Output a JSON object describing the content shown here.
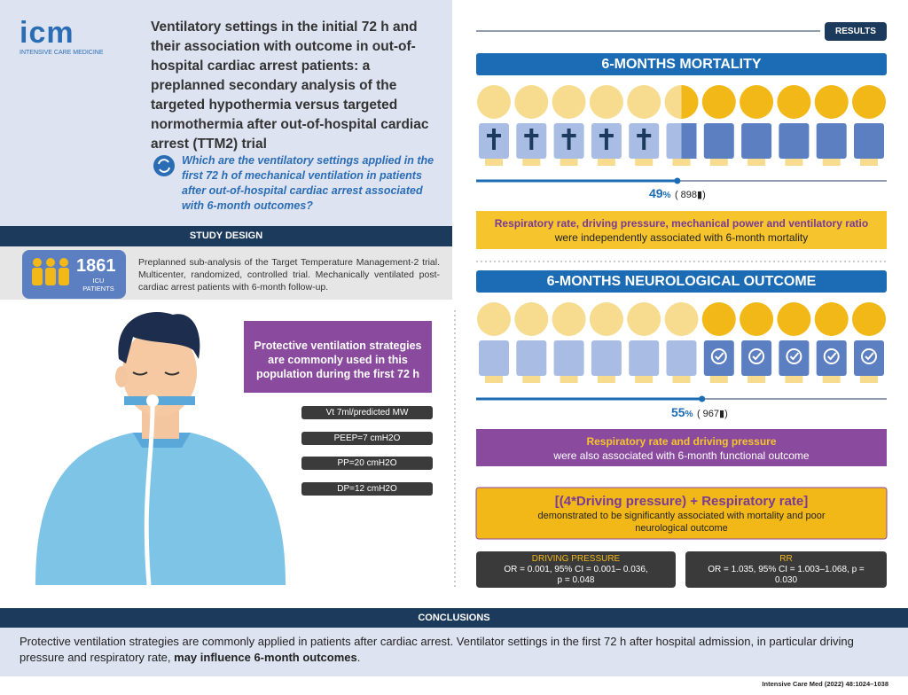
{
  "header": {
    "logo": "icm",
    "logo_sub": "INTENSIVE CARE MEDICINE",
    "title": "Ventilatory settings in the initial 72 h and their association with outcome in out-of-hospital cardiac arrest patients: a preplanned secondary analysis of the targeted hypothermia versus targeted normothermia after out-of-hospital cardiac arrest (TTM2) trial",
    "question": "Which are the ventilatory settings applied in the first 72 h of mechanical ventilation in patients after out-of-hospital cardiac arrest associated with 6-month outcomes?"
  },
  "study_design": {
    "heading": "STUDY DESIGN",
    "count": "1861",
    "count_label": "ICU PATIENTS",
    "description": "Preplanned sub-analysis of the Target Temperature Management-2 trial. Multicenter, randomized, controlled trial. Mechanically ventilated post-cardiac arrest patients with 6-month follow-up."
  },
  "protective": {
    "text": "Protective ventilation strategies are commonly used in this population during the first 72 h",
    "settings": [
      "Vt 7ml/predicted MW",
      "PEEP=7 cmH2O",
      "PP=20 cmH2O",
      "DP=12 cmH2O"
    ]
  },
  "results": {
    "badge": "RESULTS",
    "mortality": {
      "heading": "6-MONTHS MORTALITY",
      "percent": 49,
      "percent_unit": "%",
      "count": "( 898",
      "count_close": ")",
      "finding_bold": "Respiratory rate, driving pressure, mechanical power and ventilatory ratio",
      "finding": "were independently associated with 6-month mortality"
    },
    "neuro": {
      "heading": "6-MONTHS NEUROLOGICAL OUTCOME",
      "percent": 55,
      "percent_unit": "%",
      "count": "( 967",
      "count_close": ")",
      "finding_bold": "Respiratory rate and driving pressure",
      "finding": "were also associated with 6-month functional outcome"
    },
    "formula": {
      "title": "[(4*Driving pressure) + Respiratory rate]",
      "text": "demonstrated to be significantly associated with mortality and poor neurological outcome"
    },
    "stats": [
      {
        "label": "DRIVING PRESSURE",
        "text": "OR = 0.001, 95% CI = 0.001– 0.036, p = 0.048"
      },
      {
        "label": "RR",
        "text": "OR = 1.035, 95% CI = 1.003–1.068, p = 0.030"
      }
    ]
  },
  "conclusions": {
    "heading": "CONCLUSIONS",
    "text": "Protective ventilation strategies are commonly applied in patients after cardiac arrest. Ventilator settings in the first 72 h after hospital admission, in particular driving pressure and respiratory rate, ",
    "text_bold": "may influence 6-month outcomes",
    "text_end": "."
  },
  "footer": {
    "citation": "Intensive Care Med (2022) 48:1024–1038"
  }
}
